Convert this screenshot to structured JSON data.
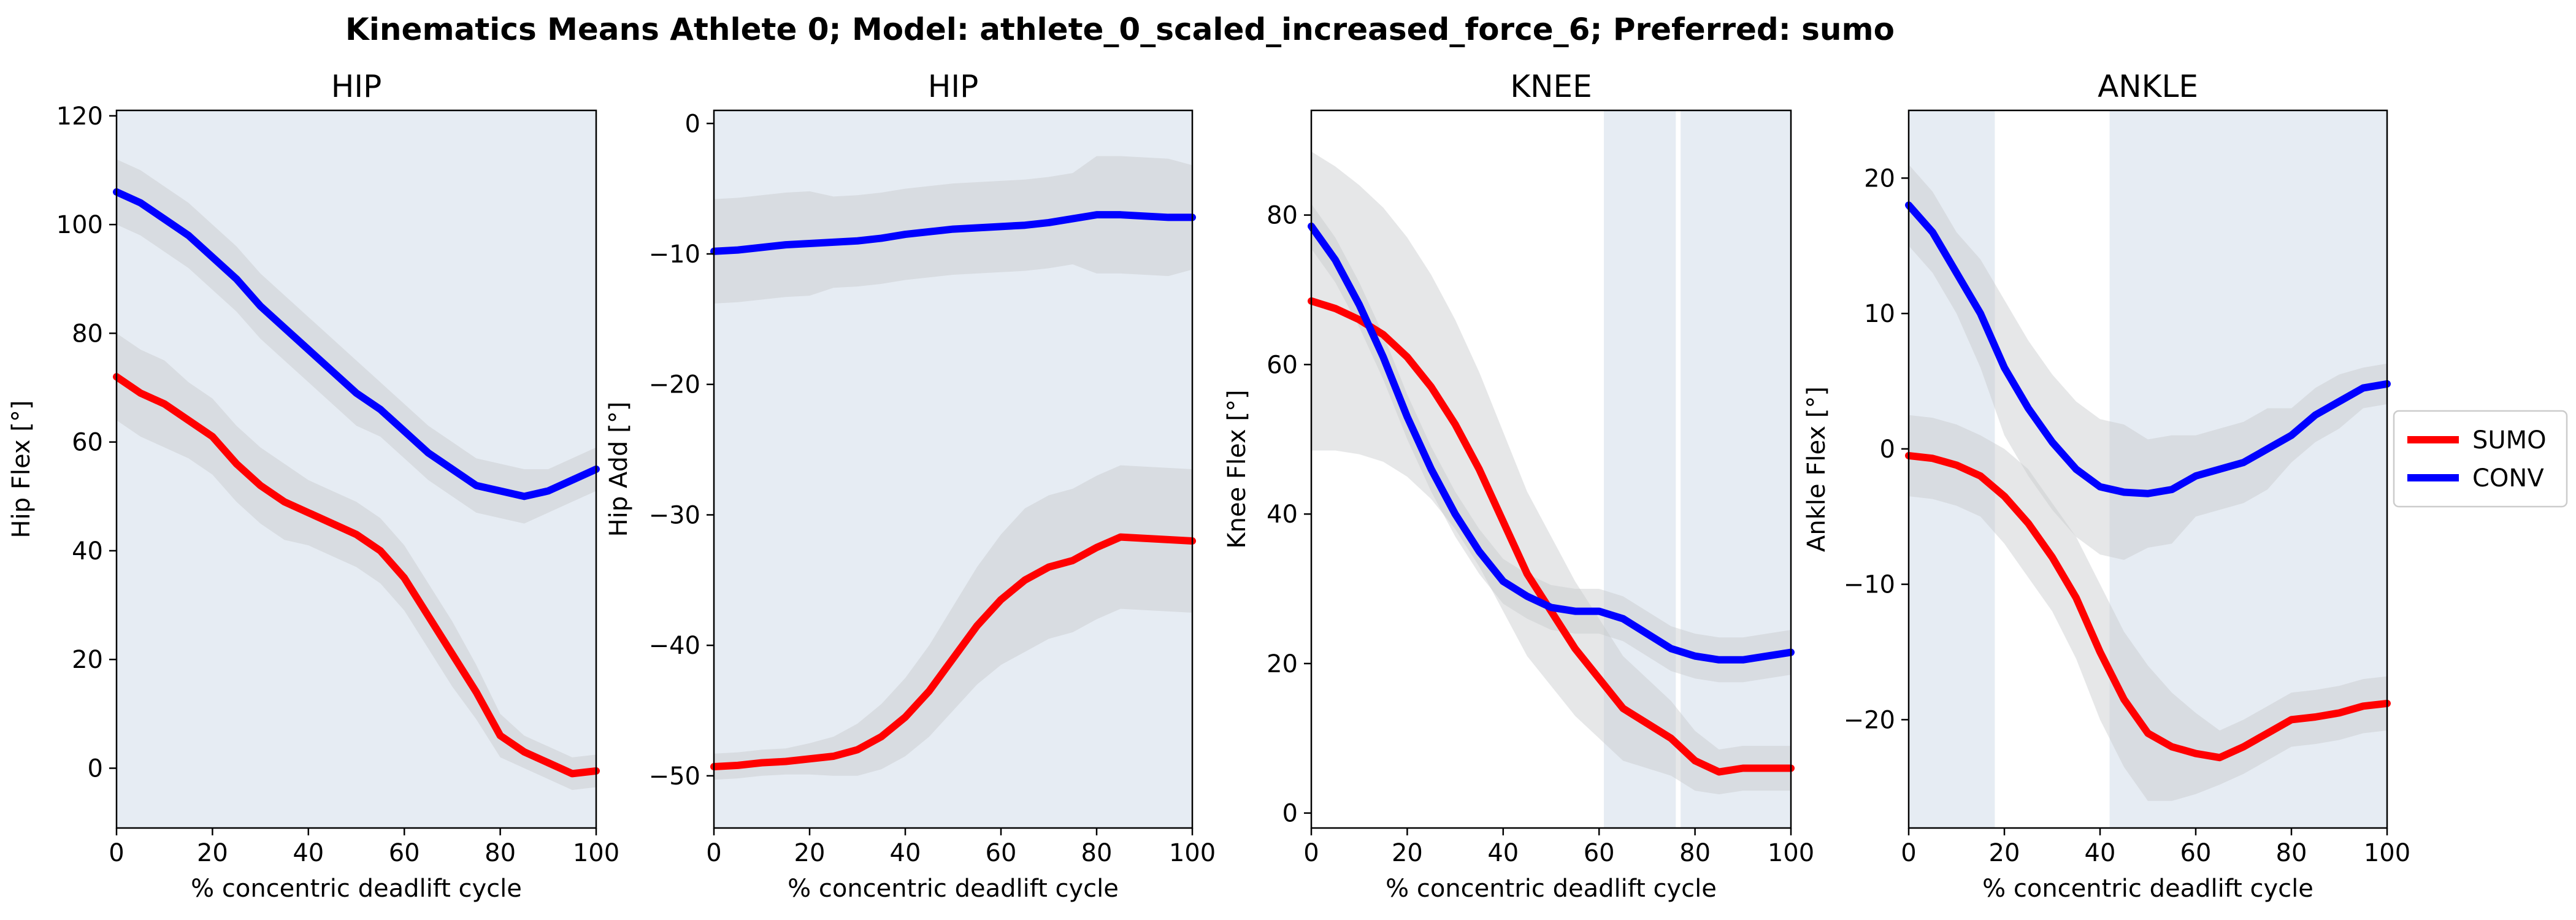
{
  "figure": {
    "title": "Kinematics Means Athlete 0; Model: athlete_0_scaled_increased_force_6; Preferred: sumo"
  },
  "colors": {
    "sumo": "#ff0000",
    "conv": "#0000ff",
    "highlight": "#e6ecf3",
    "band": "#c7c9cc"
  },
  "legend": {
    "placement": "right",
    "entries": [
      {
        "label": "SUMO",
        "color": "#ff0000"
      },
      {
        "label": "CONV",
        "color": "#0000ff"
      }
    ]
  },
  "chart_data": [
    {
      "type": "line",
      "title": "HIP",
      "xlabel": "% concentric deadlift cycle",
      "ylabel": "Hip Flex [°]",
      "xlim": [
        0,
        100
      ],
      "ylim": [
        -11,
        121
      ],
      "xticks": [
        0,
        20,
        40,
        60,
        80,
        100
      ],
      "yticks": [
        0,
        20,
        40,
        60,
        80,
        100,
        120
      ],
      "shaded_x": [
        [
          0,
          100
        ]
      ],
      "x": [
        0,
        5,
        10,
        15,
        20,
        25,
        30,
        35,
        40,
        45,
        50,
        55,
        60,
        65,
        70,
        75,
        80,
        85,
        90,
        95,
        100
      ],
      "series": [
        {
          "name": "SUMO",
          "values": [
            72,
            69,
            67,
            64,
            61,
            56,
            52,
            49,
            47,
            45,
            43,
            40,
            35,
            28,
            21,
            14,
            6,
            3,
            1,
            -1,
            -0.5
          ],
          "sd": [
            8,
            8,
            8,
            7,
            7,
            7,
            7,
            7,
            6,
            6,
            6,
            6,
            6,
            6,
            6,
            5,
            4,
            3,
            3,
            3,
            3
          ]
        },
        {
          "name": "CONV",
          "values": [
            106,
            104,
            101,
            98,
            94,
            90,
            85,
            81,
            77,
            73,
            69,
            66,
            62,
            58,
            55,
            52,
            51,
            50,
            51,
            53,
            55
          ],
          "sd": [
            6,
            6,
            6,
            6,
            6,
            6,
            6,
            6,
            6,
            6,
            6,
            5,
            5,
            5,
            5,
            5,
            5,
            5,
            4,
            4,
            4
          ]
        }
      ]
    },
    {
      "type": "line",
      "title": "HIP",
      "xlabel": "% concentric deadlift cycle",
      "ylabel": "Hip Add [°]",
      "xlim": [
        0,
        100
      ],
      "ylim": [
        -54,
        1
      ],
      "xticks": [
        0,
        20,
        40,
        60,
        80,
        100
      ],
      "yticks": [
        0,
        -10,
        -20,
        -30,
        -40,
        -50
      ],
      "shaded_x": [
        [
          0,
          100
        ]
      ],
      "x": [
        0,
        5,
        10,
        15,
        20,
        25,
        30,
        35,
        40,
        45,
        50,
        55,
        60,
        65,
        70,
        75,
        80,
        85,
        90,
        95,
        100
      ],
      "series": [
        {
          "name": "SUMO",
          "values": [
            -49.3,
            -49.2,
            -49.0,
            -48.9,
            -48.7,
            -48.5,
            -48.0,
            -47.0,
            -45.5,
            -43.5,
            -41.0,
            -38.5,
            -36.5,
            -35.0,
            -34.0,
            -33.5,
            -32.5,
            -31.7,
            -31.8,
            -31.9,
            -32.0
          ],
          "sd": [
            1.0,
            1.0,
            1.0,
            1.0,
            1.2,
            1.5,
            2.0,
            2.5,
            3.0,
            3.5,
            4.0,
            4.5,
            5.0,
            5.5,
            5.5,
            5.5,
            5.5,
            5.5,
            5.5,
            5.5,
            5.5
          ]
        },
        {
          "name": "CONV",
          "values": [
            -9.8,
            -9.7,
            -9.5,
            -9.3,
            -9.2,
            -9.1,
            -9.0,
            -8.8,
            -8.5,
            -8.3,
            -8.1,
            -8.0,
            -7.9,
            -7.8,
            -7.6,
            -7.3,
            -7.0,
            -7.0,
            -7.1,
            -7.2,
            -7.2
          ],
          "sd": [
            4.0,
            4.0,
            4.0,
            4.0,
            4.0,
            3.5,
            3.5,
            3.5,
            3.5,
            3.5,
            3.5,
            3.5,
            3.5,
            3.5,
            3.5,
            3.5,
            4.5,
            4.5,
            4.5,
            4.5,
            4.0
          ]
        }
      ]
    },
    {
      "type": "line",
      "title": "KNEE",
      "xlabel": "% concentric deadlift cycle",
      "ylabel": "Knee Flex [°]",
      "xlim": [
        0,
        100
      ],
      "ylim": [
        -2,
        94
      ],
      "xticks": [
        0,
        20,
        40,
        60,
        80,
        100
      ],
      "yticks": [
        0,
        20,
        40,
        60,
        80
      ],
      "shaded_x": [
        [
          61,
          76
        ],
        [
          77,
          100
        ]
      ],
      "x": [
        0,
        5,
        10,
        15,
        20,
        25,
        30,
        35,
        40,
        45,
        50,
        55,
        60,
        65,
        70,
        75,
        80,
        85,
        90,
        95,
        100
      ],
      "series": [
        {
          "name": "SUMO",
          "values": [
            68.5,
            67.5,
            66,
            64,
            61,
            57,
            52,
            46,
            39,
            32,
            27,
            22,
            18,
            14,
            12,
            10,
            7,
            5.5,
            6,
            6,
            6
          ],
          "sd": [
            20,
            19,
            18,
            17,
            16,
            15,
            14,
            13,
            12,
            11,
            10,
            9,
            8,
            7,
            6,
            5,
            4,
            3,
            3,
            3,
            3
          ]
        },
        {
          "name": "CONV",
          "values": [
            78.5,
            74,
            68,
            61,
            53,
            46,
            40,
            35,
            31,
            29,
            27.5,
            27,
            27,
            26,
            24,
            22,
            21,
            20.5,
            20.5,
            21,
            21.5
          ],
          "sd": [
            3,
            3,
            3,
            3,
            3,
            3,
            3,
            3,
            3,
            3,
            3,
            3,
            3,
            3,
            3,
            3,
            3,
            3,
            3,
            3,
            3
          ]
        }
      ]
    },
    {
      "type": "line",
      "title": "ANKLE",
      "xlabel": "% concentric deadlift cycle",
      "ylabel": "Ankle Flex [°]",
      "xlim": [
        0,
        100
      ],
      "ylim": [
        -28,
        25
      ],
      "xticks": [
        0,
        20,
        40,
        60,
        80,
        100
      ],
      "yticks": [
        20,
        10,
        0,
        -10,
        -20
      ],
      "shaded_x": [
        [
          0,
          18
        ],
        [
          42,
          100
        ]
      ],
      "x": [
        0,
        5,
        10,
        15,
        20,
        25,
        30,
        35,
        40,
        45,
        50,
        55,
        60,
        65,
        70,
        75,
        80,
        85,
        90,
        95,
        100
      ],
      "series": [
        {
          "name": "SUMO",
          "values": [
            -0.5,
            -0.7,
            -1.2,
            -2,
            -3.5,
            -5.5,
            -8,
            -11,
            -15,
            -18.5,
            -21,
            -22,
            -22.5,
            -22.8,
            -22,
            -21,
            -20,
            -19.8,
            -19.5,
            -19,
            -18.8
          ],
          "sd": [
            3,
            3,
            3,
            3,
            3.5,
            4,
            4,
            4.5,
            5,
            5,
            5,
            4,
            3,
            2,
            2,
            2,
            2,
            2,
            2,
            2,
            2
          ]
        },
        {
          "name": "CONV",
          "values": [
            18,
            16,
            13,
            10,
            6,
            3,
            0.5,
            -1.5,
            -2.8,
            -3.2,
            -3.3,
            -3,
            -2,
            -1.5,
            -1,
            0,
            1,
            2.5,
            3.5,
            4.5,
            4.8
          ],
          "sd": [
            3,
            3,
            3,
            4,
            5,
            5,
            5,
            5,
            5,
            5,
            4,
            4,
            3,
            3,
            3,
            3,
            2,
            2,
            2,
            1.5,
            1.5
          ]
        }
      ]
    }
  ]
}
